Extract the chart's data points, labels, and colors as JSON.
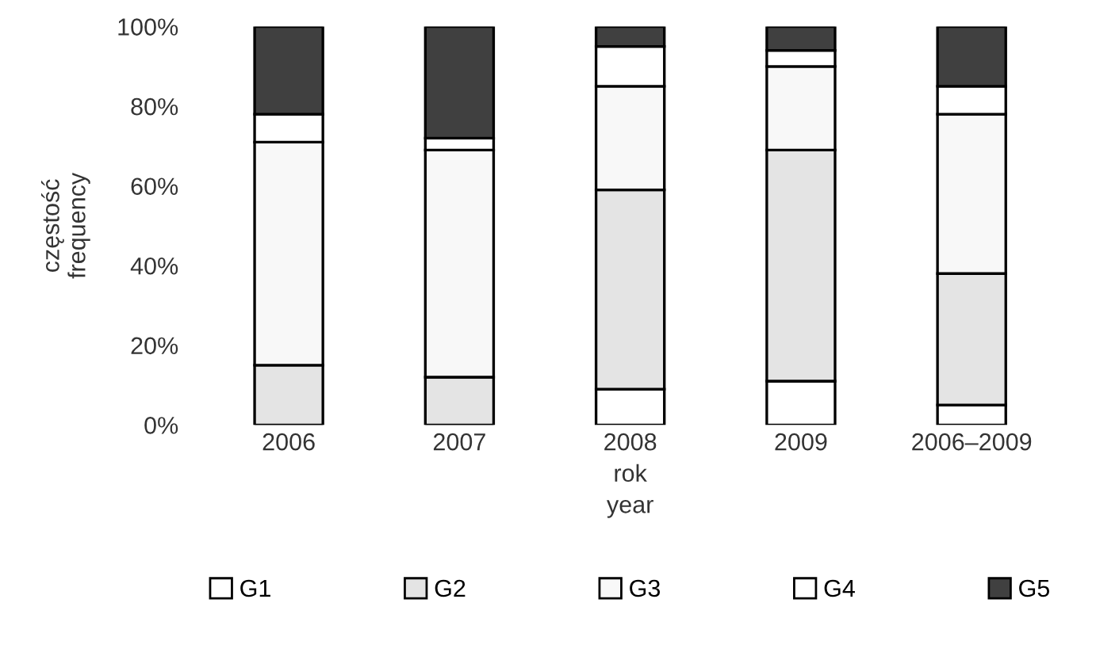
{
  "chart_data": {
    "type": "bar",
    "stacked": true,
    "xlabel": "rok\nyear",
    "ylabel": "częstość\nfrequency",
    "categories": [
      "2006",
      "2007",
      "2008",
      "2009",
      "2006–2009"
    ],
    "series": [
      {
        "name": "G1",
        "color": "#ffffff",
        "values": [
          null,
          0,
          9,
          11,
          5
        ]
      },
      {
        "name": "G2",
        "color": "#e4e4e4",
        "values": [
          15,
          12,
          50,
          58,
          33
        ]
      },
      {
        "name": "G3",
        "color": "#f8f8f8",
        "values": [
          56,
          57,
          26,
          21,
          40
        ]
      },
      {
        "name": "G4",
        "color": "#ffffff",
        "values": [
          7,
          3,
          10,
          4,
          7
        ]
      },
      {
        "name": "G5",
        "color": "#404040",
        "values": [
          22,
          28,
          5,
          6,
          15
        ]
      }
    ],
    "ylim": [
      0,
      100
    ],
    "yticks": [
      {
        "value": 0,
        "label": "0%"
      },
      {
        "value": 20,
        "label": "20%"
      },
      {
        "value": 40,
        "label": "40%"
      },
      {
        "value": 60,
        "label": "60%"
      },
      {
        "value": 80,
        "label": "80%"
      },
      {
        "value": 100,
        "label": "100%"
      }
    ],
    "grid": false,
    "legend": "bottom"
  }
}
